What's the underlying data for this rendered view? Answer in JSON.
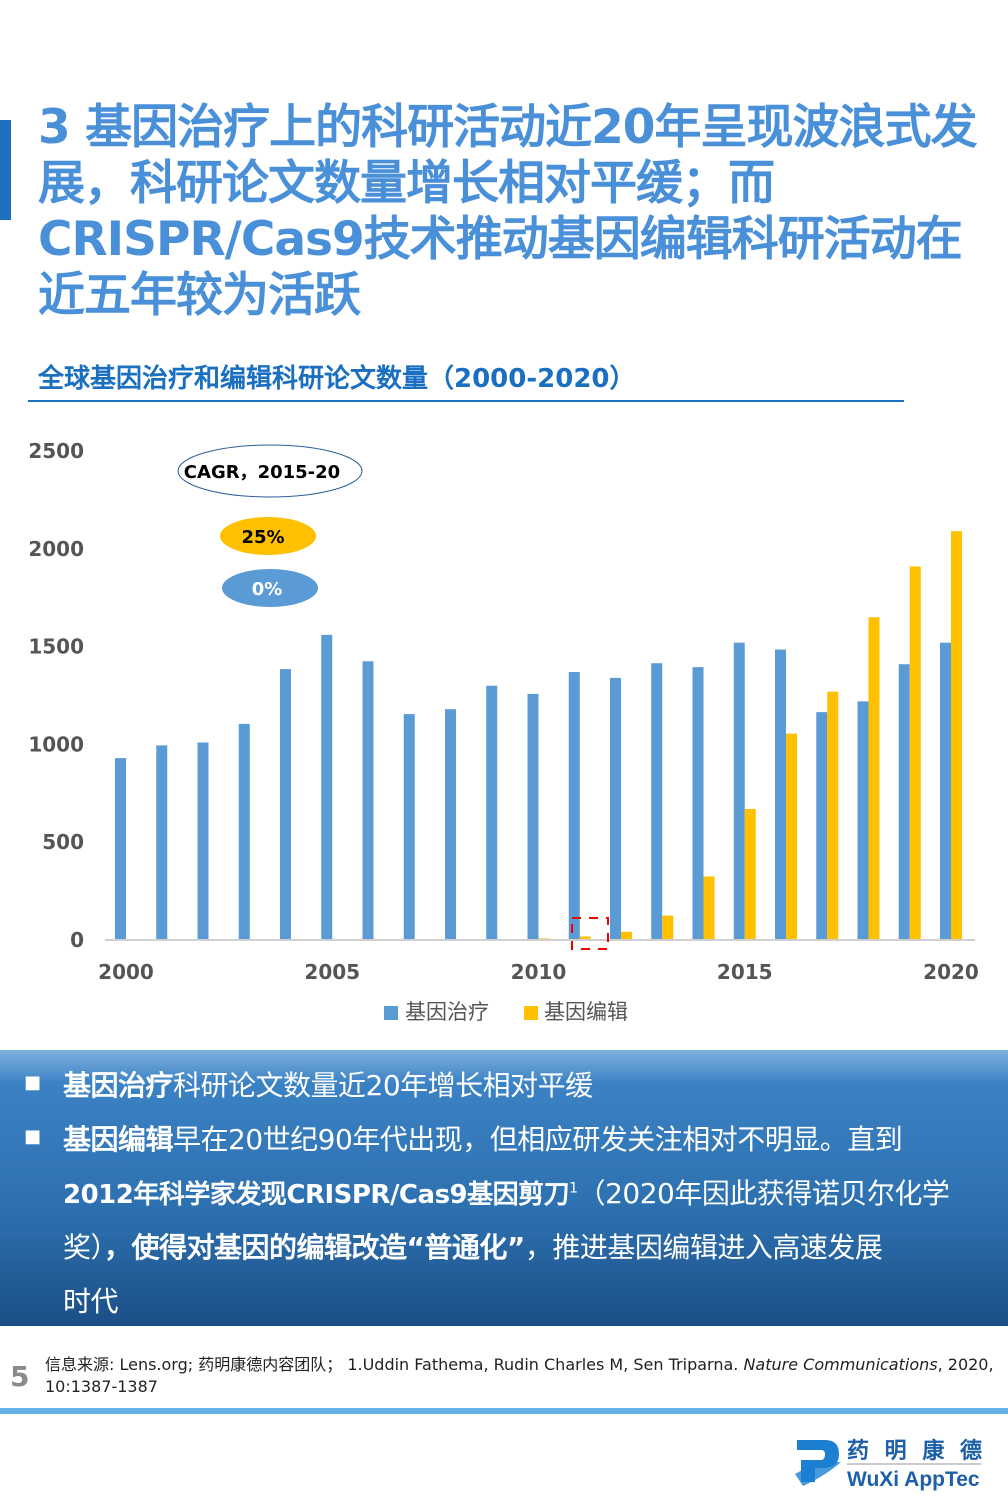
{
  "title": "3 基因治疗上的科研活动近20年呈现波浪式发展，科研论文数量增长相对平缓；而CRISPR/Cas9技术推动基因编辑科研活动在近五年较为活跃",
  "chart_title": "全球基因治疗和编辑科研论文数量（2000-2020）",
  "chart_data": {
    "type": "bar",
    "categories": [
      "2000",
      "2001",
      "2002",
      "2003",
      "2004",
      "2005",
      "2006",
      "2007",
      "2008",
      "2009",
      "2010",
      "2011",
      "2012",
      "2013",
      "2014",
      "2015",
      "2016",
      "2017",
      "2018",
      "2019",
      "2020"
    ],
    "x_tick_labels": [
      "2000",
      "2005",
      "2010",
      "2015",
      "2020"
    ],
    "y_tick_labels": [
      "0",
      "500",
      "1000",
      "1500",
      "2000",
      "2500"
    ],
    "ylim": [
      0,
      2500
    ],
    "series": [
      {
        "name": "基因治疗",
        "color": "#5b9bd5",
        "values": [
          930,
          995,
          1010,
          1105,
          1385,
          1560,
          1425,
          1155,
          1180,
          1300,
          1258,
          1370,
          1340,
          1415,
          1395,
          1520,
          1485,
          1165,
          1220,
          1410,
          1520
        ]
      },
      {
        "name": "基因编辑",
        "color": "#ffc000",
        "values": [
          0,
          0,
          0,
          0,
          5,
          5,
          5,
          5,
          5,
          5,
          8,
          18,
          42,
          125,
          325,
          670,
          1055,
          1270,
          1650,
          1910,
          2090
        ]
      }
    ],
    "legend": "bottom",
    "annotations": {
      "cagr_label": "CAGR，2015-20",
      "cagr_editing": "25%",
      "cagr_therapy": "0%"
    }
  },
  "panel": {
    "l1_bold": "基因治疗",
    "l1_rest": "科研论文数量近20年增长相对平缓",
    "l2_bold": "基因编辑",
    "l2_rest": "早在20世纪90年代出现，但相应研发关注相对不明显。直到",
    "l3_bold": "2012年科学家发现CRISPR/Cas9基因剪刀",
    "l3_sup": "1",
    "l3_rest": "（2020年因此获得诺贝尔化学",
    "l4_a": "奖）",
    "l4_bold": "，使得对基因的编辑改造“普通化”",
    "l4_rest": "，推进基因编辑进入高速发展",
    "l5": "时代"
  },
  "page_number": "5",
  "source": {
    "a": "信息来源: Lens.org; 药明康德内容团队；  1.Uddin Fathema, Rudin Charles M, Sen Triparna. ",
    "journal": "Nature Communications",
    "b": ", 2020, 10:1387-1387"
  },
  "logo": {
    "cn": "药 明 康 德",
    "en": "WuXi AppTec"
  }
}
